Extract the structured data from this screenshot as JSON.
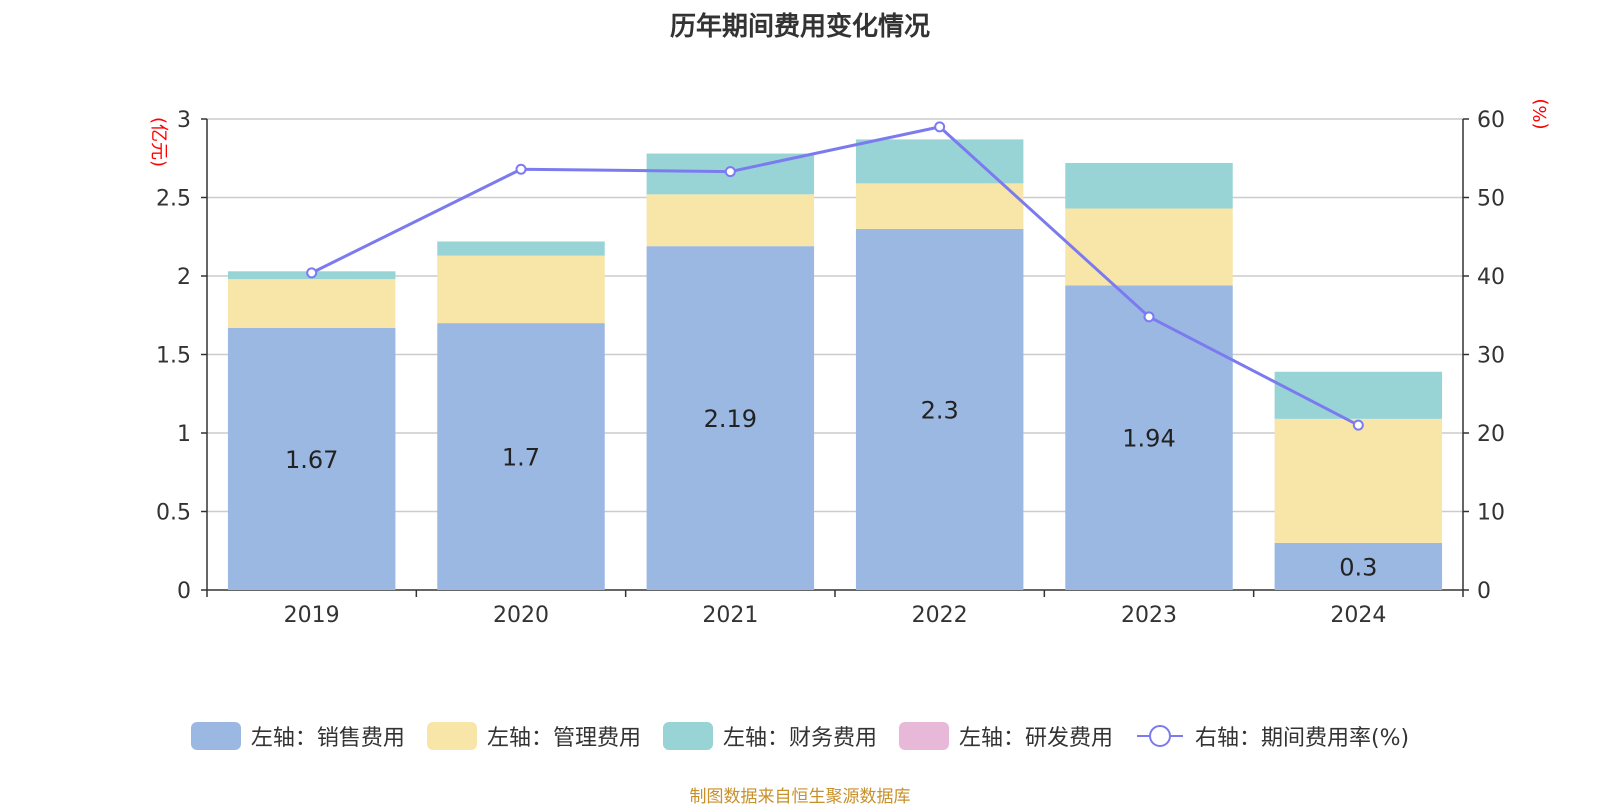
{
  "title": "历年期间费用变化情况",
  "source_note": "制图数据来自恒生聚源数据库",
  "chart_data": {
    "type": "bar",
    "stacked": true,
    "title": "历年期间费用变化情况",
    "categories": [
      "2019",
      "2020",
      "2021",
      "2022",
      "2023",
      "2024"
    ],
    "left_axis": {
      "unit_label": "(亿元)",
      "ylim": [
        0,
        3
      ],
      "ticks": [
        "0",
        "0.5",
        "1",
        "1.5",
        "2",
        "2.5",
        "3"
      ]
    },
    "right_axis": {
      "unit_label": "(%)",
      "ylim": [
        0,
        60
      ],
      "ticks": [
        "0",
        "10",
        "20",
        "30",
        "40",
        "50",
        "60"
      ]
    },
    "grid": true,
    "legend_position": "bottom",
    "series": [
      {
        "name": "左轴：销售费用",
        "type": "bar",
        "axis": "left",
        "color": "#9bb8e2",
        "values": [
          1.67,
          1.7,
          2.19,
          2.3,
          1.94,
          0.3
        ],
        "data_labels": [
          "1.67",
          "1.7",
          "2.19",
          "2.3",
          "1.94",
          "0.3"
        ]
      },
      {
        "name": "左轴：管理费用",
        "type": "bar",
        "axis": "left",
        "color": "#f7e6a8",
        "values": [
          0.31,
          0.43,
          0.33,
          0.29,
          0.49,
          0.79
        ]
      },
      {
        "name": "左轴：财务费用",
        "type": "bar",
        "axis": "left",
        "color": "#98d4d6",
        "values": [
          0.05,
          0.09,
          0.26,
          0.28,
          0.29,
          0.3
        ]
      },
      {
        "name": "左轴：研发费用",
        "type": "bar",
        "axis": "left",
        "color": "#e8b8d8",
        "values": [
          0,
          0,
          0,
          0,
          0,
          0
        ]
      },
      {
        "name": "右轴：期间费用率(%)",
        "type": "line",
        "axis": "right",
        "color": "#7b7bef",
        "values": [
          40.4,
          53.6,
          53.3,
          59,
          34.8,
          21
        ]
      }
    ]
  }
}
